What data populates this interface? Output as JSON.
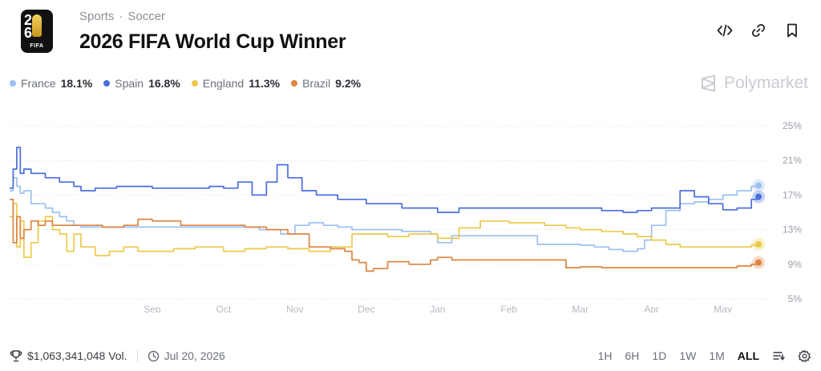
{
  "breadcrumb": {
    "category": "Sports",
    "separator": "·",
    "subcategory": "Soccer"
  },
  "title": "2026 FIFA World Cup Winner",
  "logo": {
    "text_top": "2",
    "text_bottom": "6",
    "label": "FIFA"
  },
  "brand": "Polymarket",
  "legend": [
    {
      "name": "France",
      "value": "18.1%",
      "color": "#9cc0ee"
    },
    {
      "name": "Spain",
      "value": "16.8%",
      "color": "#4a6fdc"
    },
    {
      "name": "England",
      "value": "11.3%",
      "color": "#ecc94b"
    },
    {
      "name": "Brazil",
      "value": "9.2%",
      "color": "#dd8540"
    }
  ],
  "footer": {
    "volume": "$1,063,341,048 Vol.",
    "date": "Jul 20, 2026",
    "ranges": [
      "1H",
      "6H",
      "1D",
      "1W",
      "1M",
      "ALL"
    ],
    "active_range": "ALL"
  },
  "chart_data": {
    "type": "line",
    "x_tick_labels": [
      "Sep",
      "Oct",
      "Nov",
      "Dec",
      "Jan",
      "Feb",
      "Mar",
      "Apr",
      "May"
    ],
    "x_tick_positions": [
      2.0,
      3.0,
      4.0,
      5.0,
      6.0,
      7.0,
      8.0,
      9.0,
      10.0
    ],
    "xlim": [
      0.0,
      10.6
    ],
    "y_ticks": [
      5,
      9,
      13,
      17,
      21,
      25
    ],
    "y_tick_labels": [
      "5%",
      "9%",
      "13%",
      "17%",
      "21%",
      "25%"
    ],
    "ylim": [
      5,
      25
    ],
    "grid": "horizontal-dashed",
    "series": [
      {
        "name": "France",
        "color": "#9cc0ee",
        "x": [
          0.0,
          0.05,
          0.1,
          0.15,
          0.2,
          0.3,
          0.4,
          0.5,
          0.6,
          0.7,
          0.8,
          0.9,
          1.0,
          1.3,
          1.6,
          2.0,
          2.5,
          3.0,
          3.5,
          3.8,
          4.0,
          4.2,
          4.4,
          4.6,
          4.8,
          5.0,
          5.5,
          5.9,
          6.0,
          6.2,
          6.5,
          7.0,
          7.3,
          7.4,
          7.6,
          7.8,
          8.0,
          8.2,
          8.4,
          8.6,
          8.8,
          8.9,
          9.0,
          9.2,
          9.4,
          9.6,
          9.8,
          10.0,
          10.2,
          10.4,
          10.5
        ],
        "y": [
          17.5,
          19.0,
          18.0,
          17.2,
          17.5,
          16.0,
          16.0,
          15.5,
          15.0,
          14.5,
          14.0,
          13.5,
          13.3,
          13.3,
          13.3,
          13.3,
          13.3,
          13.3,
          13.0,
          12.5,
          13.5,
          13.8,
          13.5,
          13.3,
          13.0,
          13.0,
          12.8,
          12.5,
          11.5,
          12.3,
          12.3,
          12.3,
          12.3,
          11.3,
          11.3,
          11.3,
          11.2,
          11.0,
          10.7,
          10.5,
          10.8,
          11.8,
          13.5,
          15.2,
          16.0,
          16.2,
          16.5,
          17.0,
          17.5,
          18.0,
          18.1
        ]
      },
      {
        "name": "Spain",
        "color": "#4a6fdc",
        "x": [
          0.0,
          0.05,
          0.1,
          0.15,
          0.2,
          0.3,
          0.5,
          0.7,
          0.9,
          1.0,
          1.2,
          1.5,
          2.0,
          2.5,
          2.8,
          3.0,
          3.2,
          3.4,
          3.6,
          3.75,
          3.9,
          4.1,
          4.3,
          4.6,
          5.0,
          5.5,
          6.0,
          6.3,
          6.5,
          7.0,
          7.5,
          7.8,
          8.0,
          8.3,
          8.6,
          8.8,
          9.0,
          9.2,
          9.4,
          9.6,
          9.8,
          10.0,
          10.2,
          10.4,
          10.5
        ],
        "y": [
          17.8,
          20.0,
          22.5,
          19.5,
          20.0,
          19.5,
          19.0,
          18.5,
          18.0,
          17.5,
          17.8,
          18.0,
          17.8,
          17.8,
          18.0,
          17.8,
          18.5,
          17.0,
          18.5,
          20.5,
          19.0,
          17.5,
          17.0,
          16.5,
          16.0,
          15.5,
          15.0,
          15.5,
          15.5,
          15.5,
          15.5,
          15.5,
          15.5,
          15.2,
          15.0,
          15.2,
          15.5,
          15.5,
          17.5,
          16.8,
          16.0,
          15.3,
          15.5,
          16.5,
          16.8
        ]
      },
      {
        "name": "England",
        "color": "#ecc94b",
        "x": [
          0.0,
          0.05,
          0.1,
          0.15,
          0.2,
          0.3,
          0.4,
          0.5,
          0.6,
          0.7,
          0.8,
          0.9,
          1.0,
          1.2,
          1.4,
          1.6,
          1.8,
          2.0,
          2.3,
          2.6,
          3.0,
          3.3,
          3.6,
          3.9,
          4.2,
          4.5,
          4.8,
          5.0,
          5.3,
          5.6,
          5.9,
          6.0,
          6.3,
          6.6,
          7.0,
          7.5,
          7.8,
          8.0,
          8.3,
          8.6,
          8.8,
          9.0,
          9.2,
          9.4,
          9.6,
          9.8,
          10.0,
          10.2,
          10.4,
          10.5
        ],
        "y": [
          14.5,
          16.0,
          11.0,
          14.0,
          9.8,
          11.5,
          14.0,
          14.5,
          13.0,
          12.5,
          10.5,
          12.5,
          11.0,
          10.0,
          10.5,
          11.0,
          10.5,
          10.5,
          10.8,
          11.0,
          10.5,
          10.8,
          11.0,
          10.8,
          10.5,
          11.0,
          12.5,
          12.5,
          12.2,
          12.5,
          12.5,
          12.0,
          13.2,
          14.0,
          13.8,
          13.5,
          13.2,
          13.0,
          12.8,
          12.5,
          12.2,
          11.8,
          11.3,
          11.0,
          11.0,
          11.0,
          11.0,
          11.0,
          11.2,
          11.3
        ]
      },
      {
        "name": "Brazil",
        "color": "#dd8540",
        "x": [
          0.0,
          0.05,
          0.1,
          0.15,
          0.2,
          0.3,
          0.4,
          0.5,
          0.6,
          0.8,
          1.0,
          1.3,
          1.6,
          1.8,
          2.0,
          2.2,
          2.4,
          2.7,
          3.0,
          3.3,
          3.6,
          3.9,
          4.2,
          4.5,
          4.7,
          4.8,
          4.9,
          5.0,
          5.1,
          5.3,
          5.6,
          5.9,
          6.0,
          6.2,
          6.5,
          7.0,
          7.3,
          7.6,
          7.8,
          8.0,
          8.3,
          8.6,
          9.0,
          9.5,
          10.0,
          10.2,
          10.4,
          10.5
        ],
        "y": [
          16.5,
          11.5,
          14.5,
          12.0,
          13.0,
          14.0,
          13.5,
          14.0,
          13.5,
          13.5,
          13.5,
          13.3,
          13.5,
          14.2,
          14.0,
          14.0,
          13.5,
          13.5,
          13.5,
          13.3,
          13.0,
          12.5,
          11.0,
          10.8,
          10.5,
          9.5,
          9.2,
          8.2,
          8.5,
          9.3,
          9.0,
          9.5,
          9.8,
          9.5,
          9.5,
          9.5,
          9.5,
          9.5,
          8.6,
          8.7,
          8.6,
          8.6,
          8.6,
          8.6,
          8.6,
          8.8,
          9.0,
          9.2
        ]
      }
    ]
  }
}
